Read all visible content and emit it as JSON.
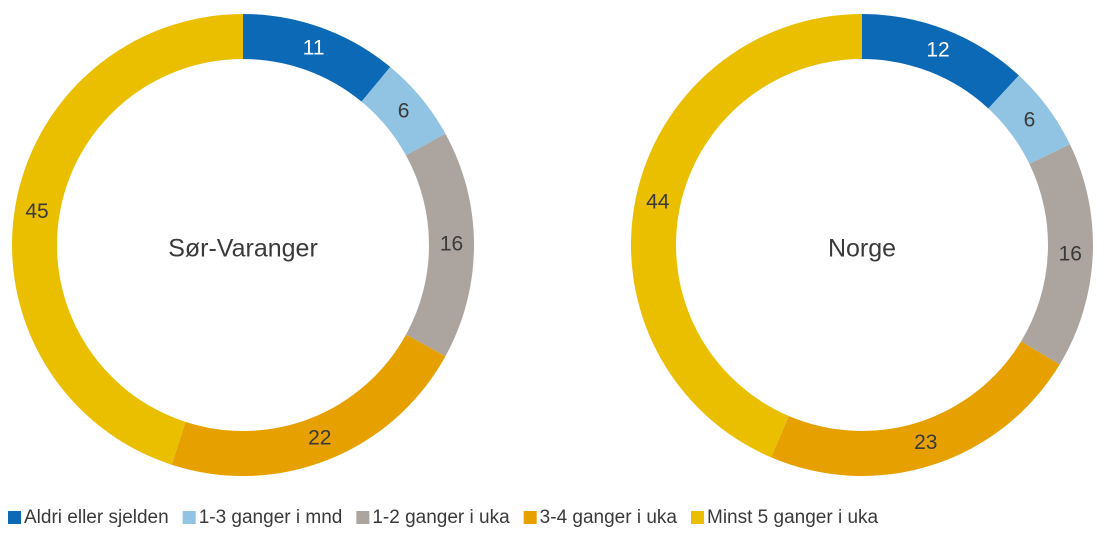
{
  "legend": {
    "categories": [
      "Aldri eller sjelden",
      "1-3 ganger i mnd",
      "1-2 ganger i uka",
      "3-4 ganger i uka",
      "Minst 5 ganger i uka"
    ],
    "colors": [
      "#0b69b6",
      "#90c4e2",
      "#aca59f",
      "#e6a100",
      "#e9bf00"
    ],
    "label_colors": [
      "#ffffff",
      "#3a3a3a",
      "#3a3a3a",
      "#3a3a3a",
      "#3a3a3a"
    ]
  },
  "chart_data": [
    {
      "type": "donut",
      "title": "Sør-Varanger",
      "values": [
        11,
        6,
        16,
        22,
        45
      ]
    },
    {
      "type": "donut",
      "title": "Norge",
      "values": [
        12,
        6,
        16,
        23,
        44
      ]
    }
  ]
}
